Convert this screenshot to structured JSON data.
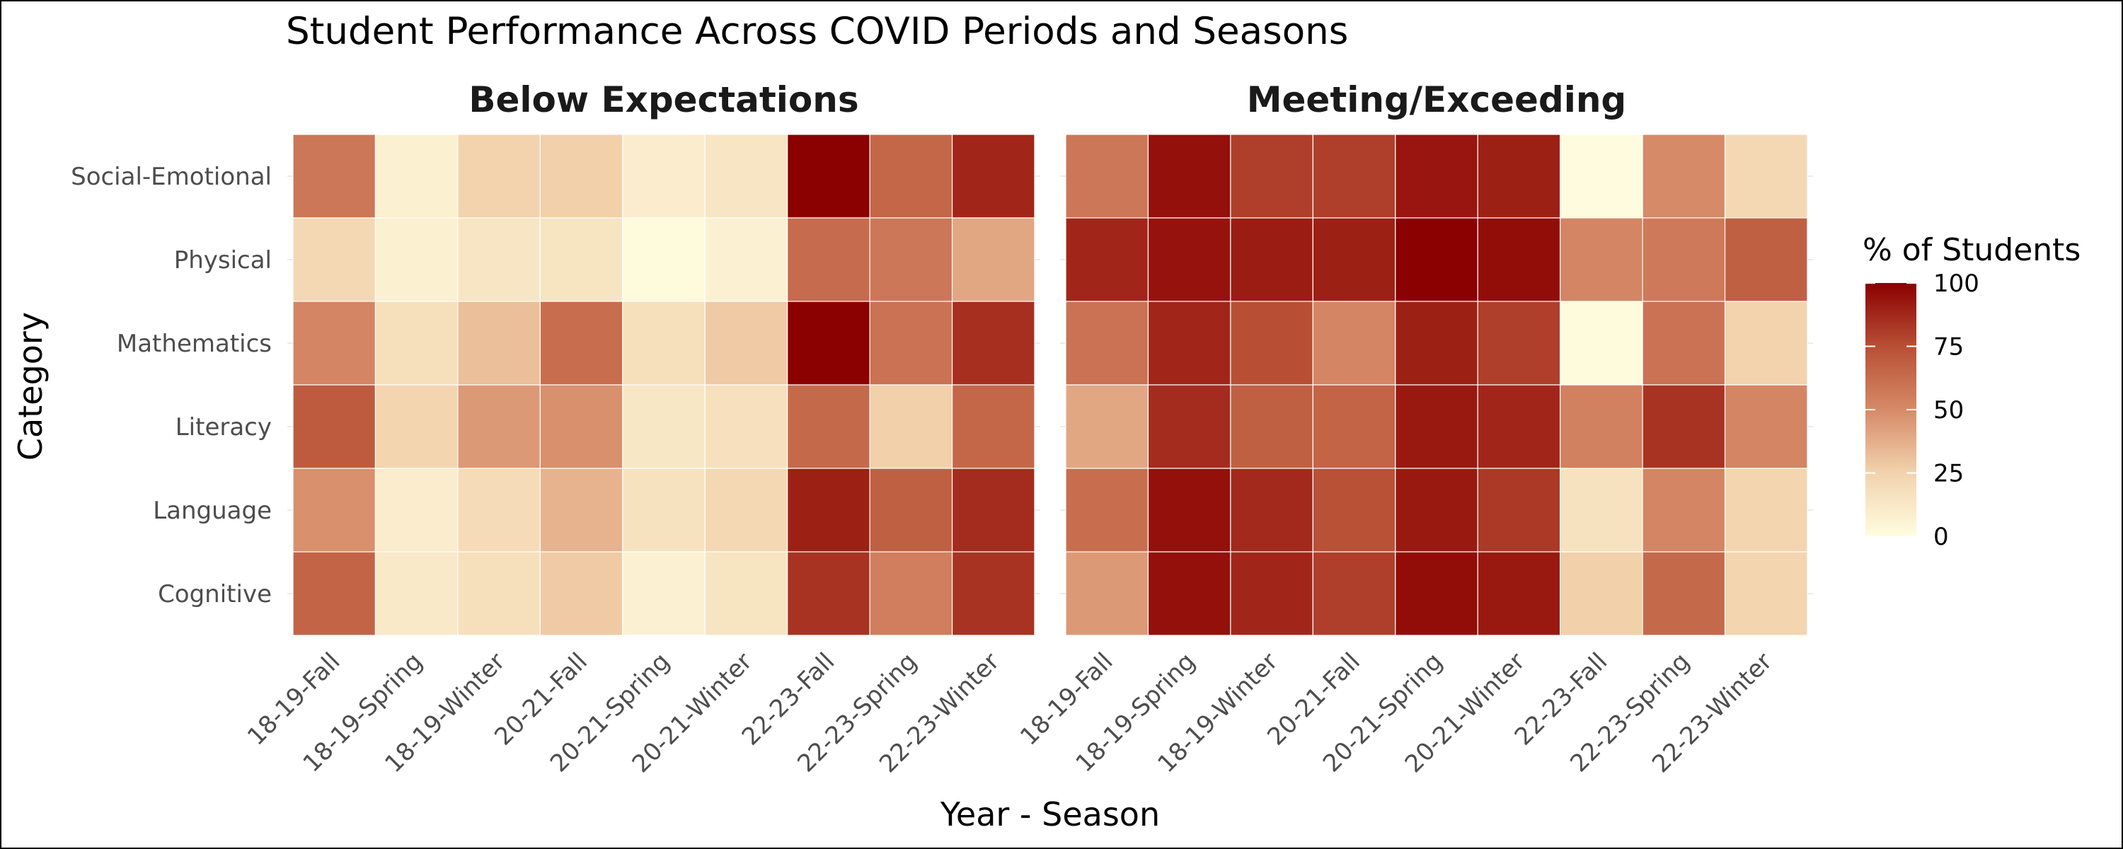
{
  "chart_data": {
    "type": "heatmap",
    "title": "Student Performance Across COVID Periods and Seasons",
    "xlabel": "Year - Season",
    "ylabel": "Category",
    "x_categories": [
      "18-19-Fall",
      "18-19-Spring",
      "18-19-Winter",
      "20-21-Fall",
      "20-21-Spring",
      "20-21-Winter",
      "22-23-Fall",
      "22-23-Spring",
      "22-23-Winter"
    ],
    "y_categories": [
      "Social-Emotional",
      "Physical",
      "Mathematics",
      "Literacy",
      "Language",
      "Cognitive"
    ],
    "legend": {
      "title": "% of Students",
      "min": 0,
      "max": 100,
      "ticks": [
        100,
        75,
        50,
        25,
        0
      ],
      "low_color": "#fffde0",
      "high_color": "#8b0000",
      "placement": "right"
    },
    "panels": [
      {
        "title": "Below Expectations",
        "values": [
          [
            58,
            8,
            25,
            26,
            10,
            14,
            100,
            65,
            88
          ],
          [
            22,
            8,
            14,
            15,
            2,
            7,
            63,
            58,
            40
          ],
          [
            52,
            18,
            32,
            62,
            18,
            28,
            100,
            60,
            85
          ],
          [
            70,
            24,
            45,
            48,
            13,
            17,
            64,
            26,
            65
          ],
          [
            48,
            10,
            20,
            36,
            16,
            22,
            90,
            68,
            86
          ],
          [
            66,
            12,
            18,
            28,
            7,
            15,
            84,
            55,
            84
          ]
        ]
      },
      {
        "title": "Meeting/Exceeding",
        "values": [
          [
            58,
            95,
            80,
            80,
            93,
            90,
            1,
            50,
            22
          ],
          [
            88,
            94,
            91,
            90,
            100,
            96,
            52,
            57,
            68
          ],
          [
            60,
            88,
            75,
            52,
            90,
            80,
            2,
            60,
            25
          ],
          [
            40,
            86,
            68,
            66,
            92,
            88,
            54,
            84,
            52
          ],
          [
            62,
            95,
            87,
            74,
            92,
            82,
            16,
            52,
            24
          ],
          [
            45,
            95,
            88,
            80,
            96,
            92,
            26,
            64,
            24
          ]
        ]
      }
    ]
  }
}
